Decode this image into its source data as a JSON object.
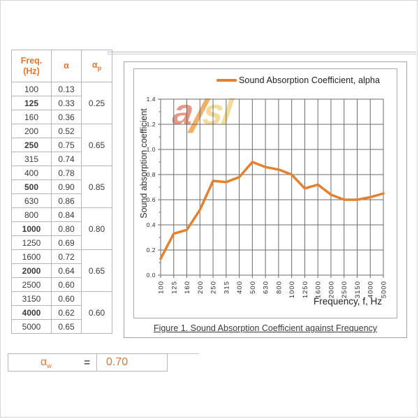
{
  "table": {
    "headers": {
      "freq_line1": "Freq.",
      "freq_line2": "(Hz)",
      "alpha": "α",
      "alpha_p_main": "α",
      "alpha_p_sub": "p"
    },
    "groups": [
      {
        "alpha_p": "0.25",
        "rows": [
          {
            "freq": "100",
            "alpha": "0.13",
            "bold": false
          },
          {
            "freq": "125",
            "alpha": "0.33",
            "bold": true
          },
          {
            "freq": "160",
            "alpha": "0.36",
            "bold": false
          }
        ]
      },
      {
        "alpha_p": "0.65",
        "rows": [
          {
            "freq": "200",
            "alpha": "0.52",
            "bold": false
          },
          {
            "freq": "250",
            "alpha": "0.75",
            "bold": true
          },
          {
            "freq": "315",
            "alpha": "0.74",
            "bold": false
          }
        ]
      },
      {
        "alpha_p": "0.85",
        "rows": [
          {
            "freq": "400",
            "alpha": "0.78",
            "bold": false
          },
          {
            "freq": "500",
            "alpha": "0.90",
            "bold": true
          },
          {
            "freq": "630",
            "alpha": "0.86",
            "bold": false
          }
        ]
      },
      {
        "alpha_p": "0.80",
        "rows": [
          {
            "freq": "800",
            "alpha": "0.84",
            "bold": false
          },
          {
            "freq": "1000",
            "alpha": "0.80",
            "bold": true
          },
          {
            "freq": "1250",
            "alpha": "0.69",
            "bold": false
          }
        ]
      },
      {
        "alpha_p": "0.65",
        "rows": [
          {
            "freq": "1600",
            "alpha": "0.72",
            "bold": false
          },
          {
            "freq": "2000",
            "alpha": "0.64",
            "bold": true
          },
          {
            "freq": "2500",
            "alpha": "0.60",
            "bold": false
          }
        ]
      },
      {
        "alpha_p": "0.60",
        "rows": [
          {
            "freq": "3150",
            "alpha": "0.60",
            "bold": false
          },
          {
            "freq": "4000",
            "alpha": "0.62",
            "bold": true
          },
          {
            "freq": "5000",
            "alpha": "0.65",
            "bold": false
          }
        ]
      }
    ]
  },
  "figure": {
    "legend": "Sound Absorption Coefficient, alpha",
    "y_axis_label": "Sound absorption coefficient",
    "x_axis_label": "Frequency, f, Hz",
    "caption": "Figure 1. Sound Absorption Coefficient against Frequency",
    "watermark": {
      "a": "a",
      "slash": "/",
      "sl": "sl"
    }
  },
  "result": {
    "symbol": "α",
    "subscript": "w",
    "equals": "=",
    "value": "0.70"
  },
  "chart_data": {
    "type": "line",
    "title": "",
    "x_categories": [
      "100",
      "125",
      "160",
      "200",
      "250",
      "315",
      "400",
      "500",
      "630",
      "800",
      "1000",
      "1250",
      "1600",
      "2000",
      "2500",
      "3150",
      "4000",
      "5000"
    ],
    "series": [
      {
        "name": "Sound Absorption Coefficient, alpha",
        "values": [
          0.13,
          0.33,
          0.36,
          0.52,
          0.75,
          0.74,
          0.78,
          0.9,
          0.86,
          0.84,
          0.8,
          0.69,
          0.72,
          0.64,
          0.6,
          0.6,
          0.62,
          0.65
        ]
      }
    ],
    "xlabel": "Frequency, f, Hz",
    "ylabel": "Sound absorption coefficient",
    "ylim": [
      0,
      1.4
    ],
    "ytick_step": 0.2,
    "ytick_labels": [
      "0.0",
      "0.2",
      "0.4",
      "0.6",
      "0.8",
      "1.0",
      "1.2",
      "1.4"
    ],
    "grid": true,
    "legend_position": "top-center",
    "line_color": "#e4812f"
  },
  "colors": {
    "accent_orange": "#e8762a",
    "line_orange": "#e4812f",
    "grid_gray": "#6b6b6b",
    "table_border": "#b5b5b5",
    "watermark_a": "#dd8a74",
    "watermark_slash": "#f2a24b",
    "watermark_sl": "#f1d78a"
  }
}
